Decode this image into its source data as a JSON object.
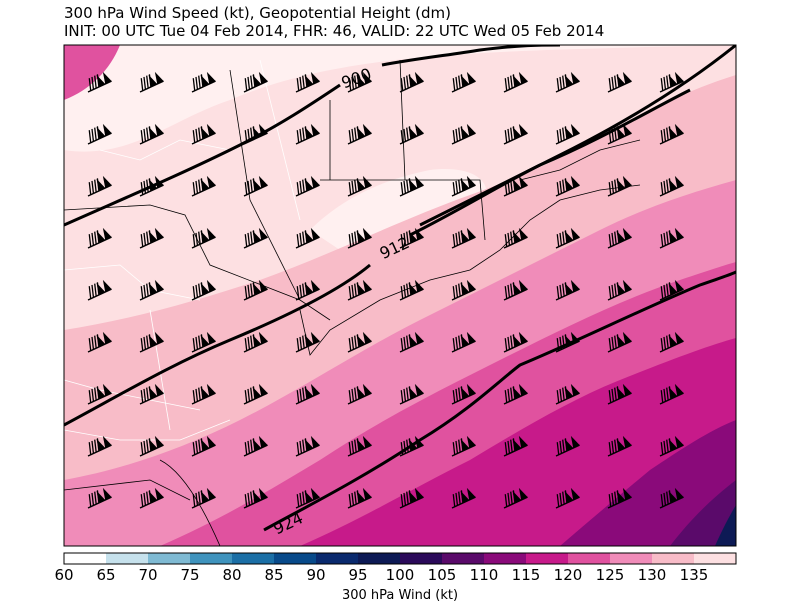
{
  "title_line1": "300 hPa Wind Speed (kt), Geopotential Height (dm)",
  "title_line2": "INIT: 00 UTC Tue 04 Feb 2014, FHR: 46, VALID: 22 UTC Wed 05 Feb 2014",
  "colorbar": {
    "label": "300 hPa Wind (kt)",
    "ticks": [
      "60",
      "65",
      "70",
      "75",
      "80",
      "85",
      "90",
      "95",
      "100",
      "105",
      "110",
      "115",
      "120",
      "125",
      "130",
      "135"
    ],
    "colors": [
      "#ffffff",
      "#c6e1ec",
      "#7fbad3",
      "#3f93bd",
      "#1b6fa6",
      "#084a8a",
      "#0a2a6e",
      "#0d1a55",
      "#2b0a5a",
      "#5a0a6a",
      "#8a0a7a",
      "#c71a8a",
      "#e0529f",
      "#f08cb9",
      "#f8bcc8",
      "#fde0e2"
    ]
  },
  "contours": [
    {
      "label": "900",
      "level": 900
    },
    {
      "label": "912",
      "level": 912
    },
    {
      "label": "924",
      "level": 924
    }
  ],
  "field_colors": {
    "c135": "#fff0f0",
    "c130": "#fde0e2",
    "c125": "#f8bcc8",
    "c120": "#f08cb9",
    "c115": "#e0529f",
    "c110": "#c71a8a",
    "c105": "#8a0a7a",
    "c100": "#5a0a6a",
    "c95": "#2b0a5a"
  }
}
